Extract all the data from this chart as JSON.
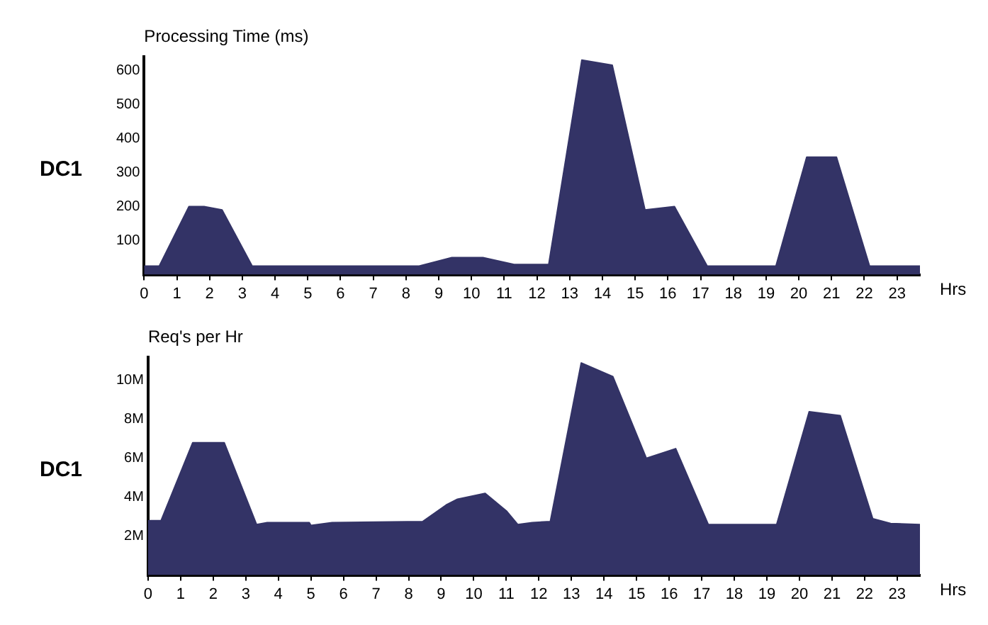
{
  "chart_data": [
    {
      "type": "area",
      "title": "Processing Time (ms)",
      "ylabel": "DC1",
      "xlabel": "Hrs",
      "grid": false,
      "legend": false,
      "x": [
        0,
        0.46,
        1.37,
        1.83,
        2.38,
        3.3,
        8.4,
        9.4,
        10.35,
        11.3,
        12.36,
        13.37,
        14.3,
        15.3,
        16.2,
        17.2,
        19.3,
        20.24,
        21.15,
        22.16,
        23.7
      ],
      "series": [
        {
          "color": "#333366",
          "values": [
            25,
            25,
            200,
            200,
            190,
            25,
            25,
            50,
            50,
            30,
            30,
            630,
            615,
            190,
            200,
            25,
            25,
            345,
            345,
            25,
            25
          ]
        }
      ],
      "xlim": [
        0,
        23.7
      ],
      "xticks": [
        0,
        1,
        2,
        3,
        4,
        5,
        6,
        7,
        8,
        9,
        10,
        11,
        12,
        13,
        14,
        15,
        16,
        17,
        18,
        19,
        20,
        21,
        22,
        23
      ],
      "ylim": [
        0,
        640
      ],
      "yticks": [
        100,
        200,
        300,
        400,
        500,
        600
      ]
    },
    {
      "type": "area",
      "title": "Req's per Hr",
      "ylabel": "DC1",
      "xlabel": "Hrs",
      "grid": false,
      "legend": false,
      "x": [
        0,
        0.4,
        1.37,
        2.34,
        3.33,
        3.66,
        4.95,
        5.0,
        5.65,
        8.43,
        9.15,
        9.5,
        10.35,
        11.0,
        11.35,
        11.8,
        12.35,
        13.3,
        14.27,
        15.3,
        16.2,
        17.2,
        19.3,
        20.3,
        21.25,
        22.25,
        22.8,
        23.7
      ],
      "series": [
        {
          "color": "#333366",
          "values": [
            2.8,
            2.8,
            6.8,
            6.8,
            2.6,
            2.7,
            2.7,
            2.55,
            2.7,
            2.75,
            3.6,
            3.9,
            4.2,
            3.3,
            2.6,
            2.7,
            2.75,
            10.9,
            10.2,
            6.0,
            6.5,
            2.6,
            2.6,
            8.4,
            8.2,
            2.9,
            2.65,
            2.6
          ]
        }
      ],
      "xlim": [
        0,
        23.7
      ],
      "xticks": [
        0,
        1,
        2,
        3,
        4,
        5,
        6,
        7,
        8,
        9,
        10,
        11,
        12,
        13,
        14,
        15,
        16,
        17,
        18,
        19,
        20,
        21,
        22,
        23
      ],
      "ylim": [
        0,
        11.2
      ],
      "yticks": [
        {
          "value": 2,
          "label": "2M"
        },
        {
          "value": 4,
          "label": "4M"
        },
        {
          "value": 6,
          "label": "6M"
        },
        {
          "value": 8,
          "label": "8M"
        },
        {
          "value": 10,
          "label": "10M"
        }
      ]
    }
  ]
}
